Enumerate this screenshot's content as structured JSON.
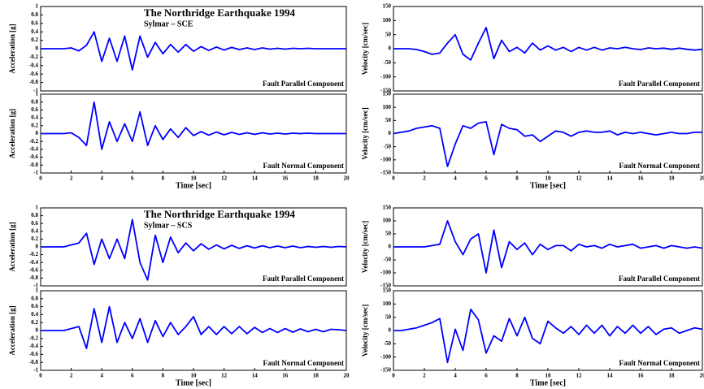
{
  "chart_data": [
    {
      "type": "line",
      "title": "The Northridge Earthquake 1994",
      "subtitle": "Sylmar – SCE",
      "annotation": "Fault Parallel Component",
      "ylabel": "Acceleration [g]",
      "color": "#0000ff",
      "x": [
        0,
        0.5,
        1,
        1.5,
        2,
        2.5,
        3,
        3.5,
        4,
        4.5,
        5,
        5.5,
        6,
        6.5,
        7,
        7.5,
        8,
        8.5,
        9,
        9.5,
        10,
        10.5,
        11,
        11.5,
        12,
        12.5,
        13,
        13.5,
        14,
        14.5,
        15,
        15.5,
        16,
        16.5,
        17,
        17.5,
        18,
        18.5,
        19,
        19.5,
        20
      ],
      "values": [
        0,
        0,
        0,
        0,
        0.02,
        -0.05,
        0.08,
        0.4,
        -0.3,
        0.25,
        -0.3,
        0.3,
        -0.5,
        0.3,
        -0.2,
        0.15,
        -0.12,
        0.1,
        -0.08,
        0.1,
        -0.06,
        0.05,
        -0.04,
        0.04,
        -0.03,
        0.03,
        -0.02,
        0.02,
        -0.02,
        0.02,
        -0.01,
        0.01,
        -0.01,
        0.01,
        0,
        0.01,
        0,
        0,
        0,
        0,
        0
      ],
      "xlim": [
        0,
        20
      ],
      "ylim": [
        -1,
        1
      ],
      "yticks": [
        -1,
        -0.8,
        -0.6,
        -0.4,
        -0.2,
        0,
        0.2,
        0.4,
        0.6,
        0.8,
        1
      ]
    },
    {
      "type": "line",
      "annotation": "Fault Normal Component",
      "ylabel": "Acceleration [g]",
      "xlabel": "Time [sec]",
      "color": "#0000ff",
      "x": [
        0,
        0.5,
        1,
        1.5,
        2,
        2.5,
        3,
        3.5,
        4,
        4.5,
        5,
        5.5,
        6,
        6.5,
        7,
        7.5,
        8,
        8.5,
        9,
        9.5,
        10,
        10.5,
        11,
        11.5,
        12,
        12.5,
        13,
        13.5,
        14,
        14.5,
        15,
        15.5,
        16,
        16.5,
        17,
        17.5,
        18,
        18.5,
        19,
        19.5,
        20
      ],
      "values": [
        0,
        0,
        0,
        0,
        0.02,
        -0.1,
        -0.3,
        0.8,
        -0.4,
        0.3,
        -0.2,
        0.25,
        -0.2,
        0.55,
        -0.3,
        0.2,
        -0.15,
        0.12,
        -0.1,
        0.15,
        -0.05,
        0.05,
        -0.04,
        0.04,
        -0.03,
        0.03,
        -0.02,
        0.02,
        -0.02,
        0.02,
        -0.01,
        0.01,
        -0.01,
        0.01,
        0,
        0.01,
        0,
        0,
        0,
        0,
        0
      ],
      "xlim": [
        0,
        20
      ],
      "ylim": [
        -1,
        1
      ],
      "yticks": [
        -1,
        -0.8,
        -0.6,
        -0.4,
        -0.2,
        0,
        0.2,
        0.4,
        0.6,
        0.8,
        1
      ],
      "xticks": [
        0,
        2,
        4,
        6,
        8,
        10,
        12,
        14,
        16,
        18,
        20
      ]
    },
    {
      "type": "line",
      "annotation": "Fault Parallel Component",
      "ylabel": "Velocity [cm/sec]",
      "color": "#0000ff",
      "x": [
        0,
        0.5,
        1,
        1.5,
        2,
        2.5,
        3,
        3.5,
        4,
        4.5,
        5,
        5.5,
        6,
        6.5,
        7,
        7.5,
        8,
        8.5,
        9,
        9.5,
        10,
        10.5,
        11,
        11.5,
        12,
        12.5,
        13,
        13.5,
        14,
        14.5,
        15,
        15.5,
        16,
        16.5,
        17,
        17.5,
        18,
        18.5,
        19,
        19.5,
        20
      ],
      "values": [
        0,
        0,
        0,
        -3,
        -10,
        -20,
        -15,
        20,
        50,
        -20,
        -40,
        20,
        75,
        -35,
        30,
        -10,
        5,
        -15,
        20,
        -5,
        10,
        -5,
        5,
        -10,
        5,
        -5,
        5,
        -5,
        3,
        0,
        5,
        0,
        -3,
        3,
        0,
        2,
        -2,
        2,
        -2,
        -5,
        -2
      ],
      "xlim": [
        0,
        20
      ],
      "ylim": [
        -150,
        150
      ],
      "yticks": [
        -150,
        -100,
        -50,
        0,
        50,
        100,
        150
      ]
    },
    {
      "type": "line",
      "annotation": "Fault Normal Component",
      "ylabel": "Velocity [cm/sec]",
      "xlabel": "Time [sec]",
      "color": "#0000ff",
      "x": [
        0,
        0.5,
        1,
        1.5,
        2,
        2.5,
        3,
        3.5,
        4,
        4.5,
        5,
        5.5,
        6,
        6.5,
        7,
        7.5,
        8,
        8.5,
        9,
        9.5,
        10,
        10.5,
        11,
        11.5,
        12,
        12.5,
        13,
        13.5,
        14,
        14.5,
        15,
        15.5,
        16,
        16.5,
        17,
        17.5,
        18,
        18.5,
        19,
        19.5,
        20
      ],
      "values": [
        0,
        5,
        10,
        20,
        25,
        30,
        20,
        -125,
        -40,
        30,
        20,
        40,
        45,
        -80,
        35,
        20,
        15,
        -10,
        -5,
        -30,
        -10,
        10,
        5,
        -10,
        5,
        10,
        5,
        5,
        10,
        -5,
        5,
        0,
        5,
        0,
        -5,
        0,
        5,
        0,
        0,
        5,
        5
      ],
      "xlim": [
        0,
        20
      ],
      "ylim": [
        -150,
        150
      ],
      "yticks": [
        -150,
        -100,
        -50,
        0,
        50,
        100,
        150
      ],
      "xticks": [
        0,
        2,
        4,
        6,
        8,
        10,
        12,
        14,
        16,
        18,
        20
      ]
    },
    {
      "type": "line",
      "title": "The Northridge Earthquake 1994",
      "subtitle": "Sylmar – SCS",
      "annotation": "Fault Parallel Component",
      "ylabel": "Acceleration [g]",
      "color": "#0000ff",
      "x": [
        0,
        0.5,
        1,
        1.5,
        2,
        2.5,
        3,
        3.5,
        4,
        4.5,
        5,
        5.5,
        6,
        6.5,
        7,
        7.5,
        8,
        8.5,
        9,
        9.5,
        10,
        10.5,
        11,
        11.5,
        12,
        12.5,
        13,
        13.5,
        14,
        14.5,
        15,
        15.5,
        16,
        16.5,
        17,
        17.5,
        18,
        18.5,
        19,
        19.5,
        20
      ],
      "values": [
        0,
        0,
        0,
        0,
        0.05,
        0.1,
        0.35,
        -0.45,
        0.2,
        -0.3,
        0.2,
        -0.3,
        0.7,
        -0.4,
        -0.85,
        0.3,
        -0.4,
        0.25,
        -0.15,
        0.1,
        -0.1,
        0.08,
        -0.06,
        0.05,
        -0.05,
        0.04,
        -0.04,
        0.03,
        -0.03,
        0.03,
        -0.02,
        0.02,
        -0.02,
        0.02,
        -0.02,
        0.01,
        -0.01,
        0.01,
        -0.01,
        0.01,
        0
      ],
      "xlim": [
        0,
        20
      ],
      "ylim": [
        -1,
        1
      ],
      "yticks": [
        -1,
        -0.8,
        -0.6,
        -0.4,
        -0.2,
        0,
        0.2,
        0.4,
        0.6,
        0.8,
        1
      ]
    },
    {
      "type": "line",
      "annotation": "Fault Normal Component",
      "ylabel": "Acceleration [g]",
      "xlabel": "Time [sec]",
      "color": "#0000ff",
      "x": [
        0,
        0.5,
        1,
        1.5,
        2,
        2.5,
        3,
        3.5,
        4,
        4.5,
        5,
        5.5,
        6,
        6.5,
        7,
        7.5,
        8,
        8.5,
        9,
        9.5,
        10,
        10.5,
        11,
        11.5,
        12,
        12.5,
        13,
        13.5,
        14,
        14.5,
        15,
        15.5,
        16,
        16.5,
        17,
        17.5,
        18,
        18.5,
        19,
        19.5,
        20
      ],
      "values": [
        0,
        0,
        0,
        0,
        0.05,
        0.1,
        -0.45,
        0.55,
        -0.3,
        0.6,
        -0.3,
        0.2,
        -0.2,
        0.3,
        -0.3,
        0.25,
        -0.15,
        0.2,
        -0.1,
        0.1,
        0.35,
        -0.1,
        0.1,
        -0.1,
        0.1,
        -0.08,
        0.1,
        -0.08,
        0.08,
        -0.05,
        0.05,
        -0.05,
        0.05,
        -0.04,
        0.04,
        -0.03,
        0.03,
        -0.03,
        0.03,
        0.02,
        0
      ],
      "xlim": [
        0,
        20
      ],
      "ylim": [
        -1,
        1
      ],
      "yticks": [
        -1,
        -0.8,
        -0.6,
        -0.4,
        -0.2,
        0,
        0.2,
        0.4,
        0.6,
        0.8,
        1
      ],
      "xticks": [
        0,
        2,
        4,
        6,
        8,
        10,
        12,
        14,
        16,
        18,
        20
      ]
    },
    {
      "type": "line",
      "annotation": "Fault Parallel Component",
      "ylabel": "Velocity [cm/sec]",
      "color": "#0000ff",
      "x": [
        0,
        0.5,
        1,
        1.5,
        2,
        2.5,
        3,
        3.5,
        4,
        4.5,
        5,
        5.5,
        6,
        6.5,
        7,
        7.5,
        8,
        8.5,
        9,
        9.5,
        10,
        10.5,
        11,
        11.5,
        12,
        12.5,
        13,
        13.5,
        14,
        14.5,
        15,
        15.5,
        16,
        16.5,
        17,
        17.5,
        18,
        18.5,
        19,
        19.5,
        20
      ],
      "values": [
        0,
        0,
        0,
        0,
        0,
        5,
        10,
        100,
        20,
        -30,
        30,
        50,
        -100,
        65,
        -80,
        20,
        -10,
        15,
        -30,
        10,
        -10,
        5,
        5,
        -15,
        10,
        0,
        5,
        -5,
        10,
        0,
        5,
        10,
        -5,
        0,
        5,
        -5,
        5,
        0,
        -5,
        0,
        -5
      ],
      "xlim": [
        0,
        20
      ],
      "ylim": [
        -150,
        150
      ],
      "yticks": [
        -150,
        -100,
        -50,
        0,
        50,
        100,
        150
      ]
    },
    {
      "type": "line",
      "annotation": "Fault Normal Component",
      "ylabel": "Velocity [cm/sec]",
      "xlabel": "Time [sec]",
      "color": "#0000ff",
      "x": [
        0,
        0.5,
        1,
        1.5,
        2,
        2.5,
        3,
        3.5,
        4,
        4.5,
        5,
        5.5,
        6,
        6.5,
        7,
        7.5,
        8,
        8.5,
        9,
        9.5,
        10,
        10.5,
        11,
        11.5,
        12,
        12.5,
        13,
        13.5,
        14,
        14.5,
        15,
        15.5,
        16,
        16.5,
        17,
        17.5,
        18,
        18.5,
        19,
        19.5,
        20
      ],
      "values": [
        0,
        0,
        5,
        10,
        20,
        30,
        45,
        -120,
        5,
        -75,
        80,
        40,
        -85,
        -20,
        -40,
        45,
        -20,
        50,
        -30,
        -50,
        35,
        10,
        -10,
        15,
        -15,
        20,
        -10,
        20,
        -20,
        15,
        -10,
        20,
        -10,
        15,
        -15,
        5,
        10,
        -10,
        0,
        10,
        5
      ],
      "xlim": [
        0,
        20
      ],
      "ylim": [
        -150,
        150
      ],
      "yticks": [
        -150,
        -100,
        -50,
        0,
        50,
        100,
        150
      ],
      "xticks": [
        0,
        2,
        4,
        6,
        8,
        10,
        12,
        14,
        16,
        18,
        20
      ]
    }
  ]
}
